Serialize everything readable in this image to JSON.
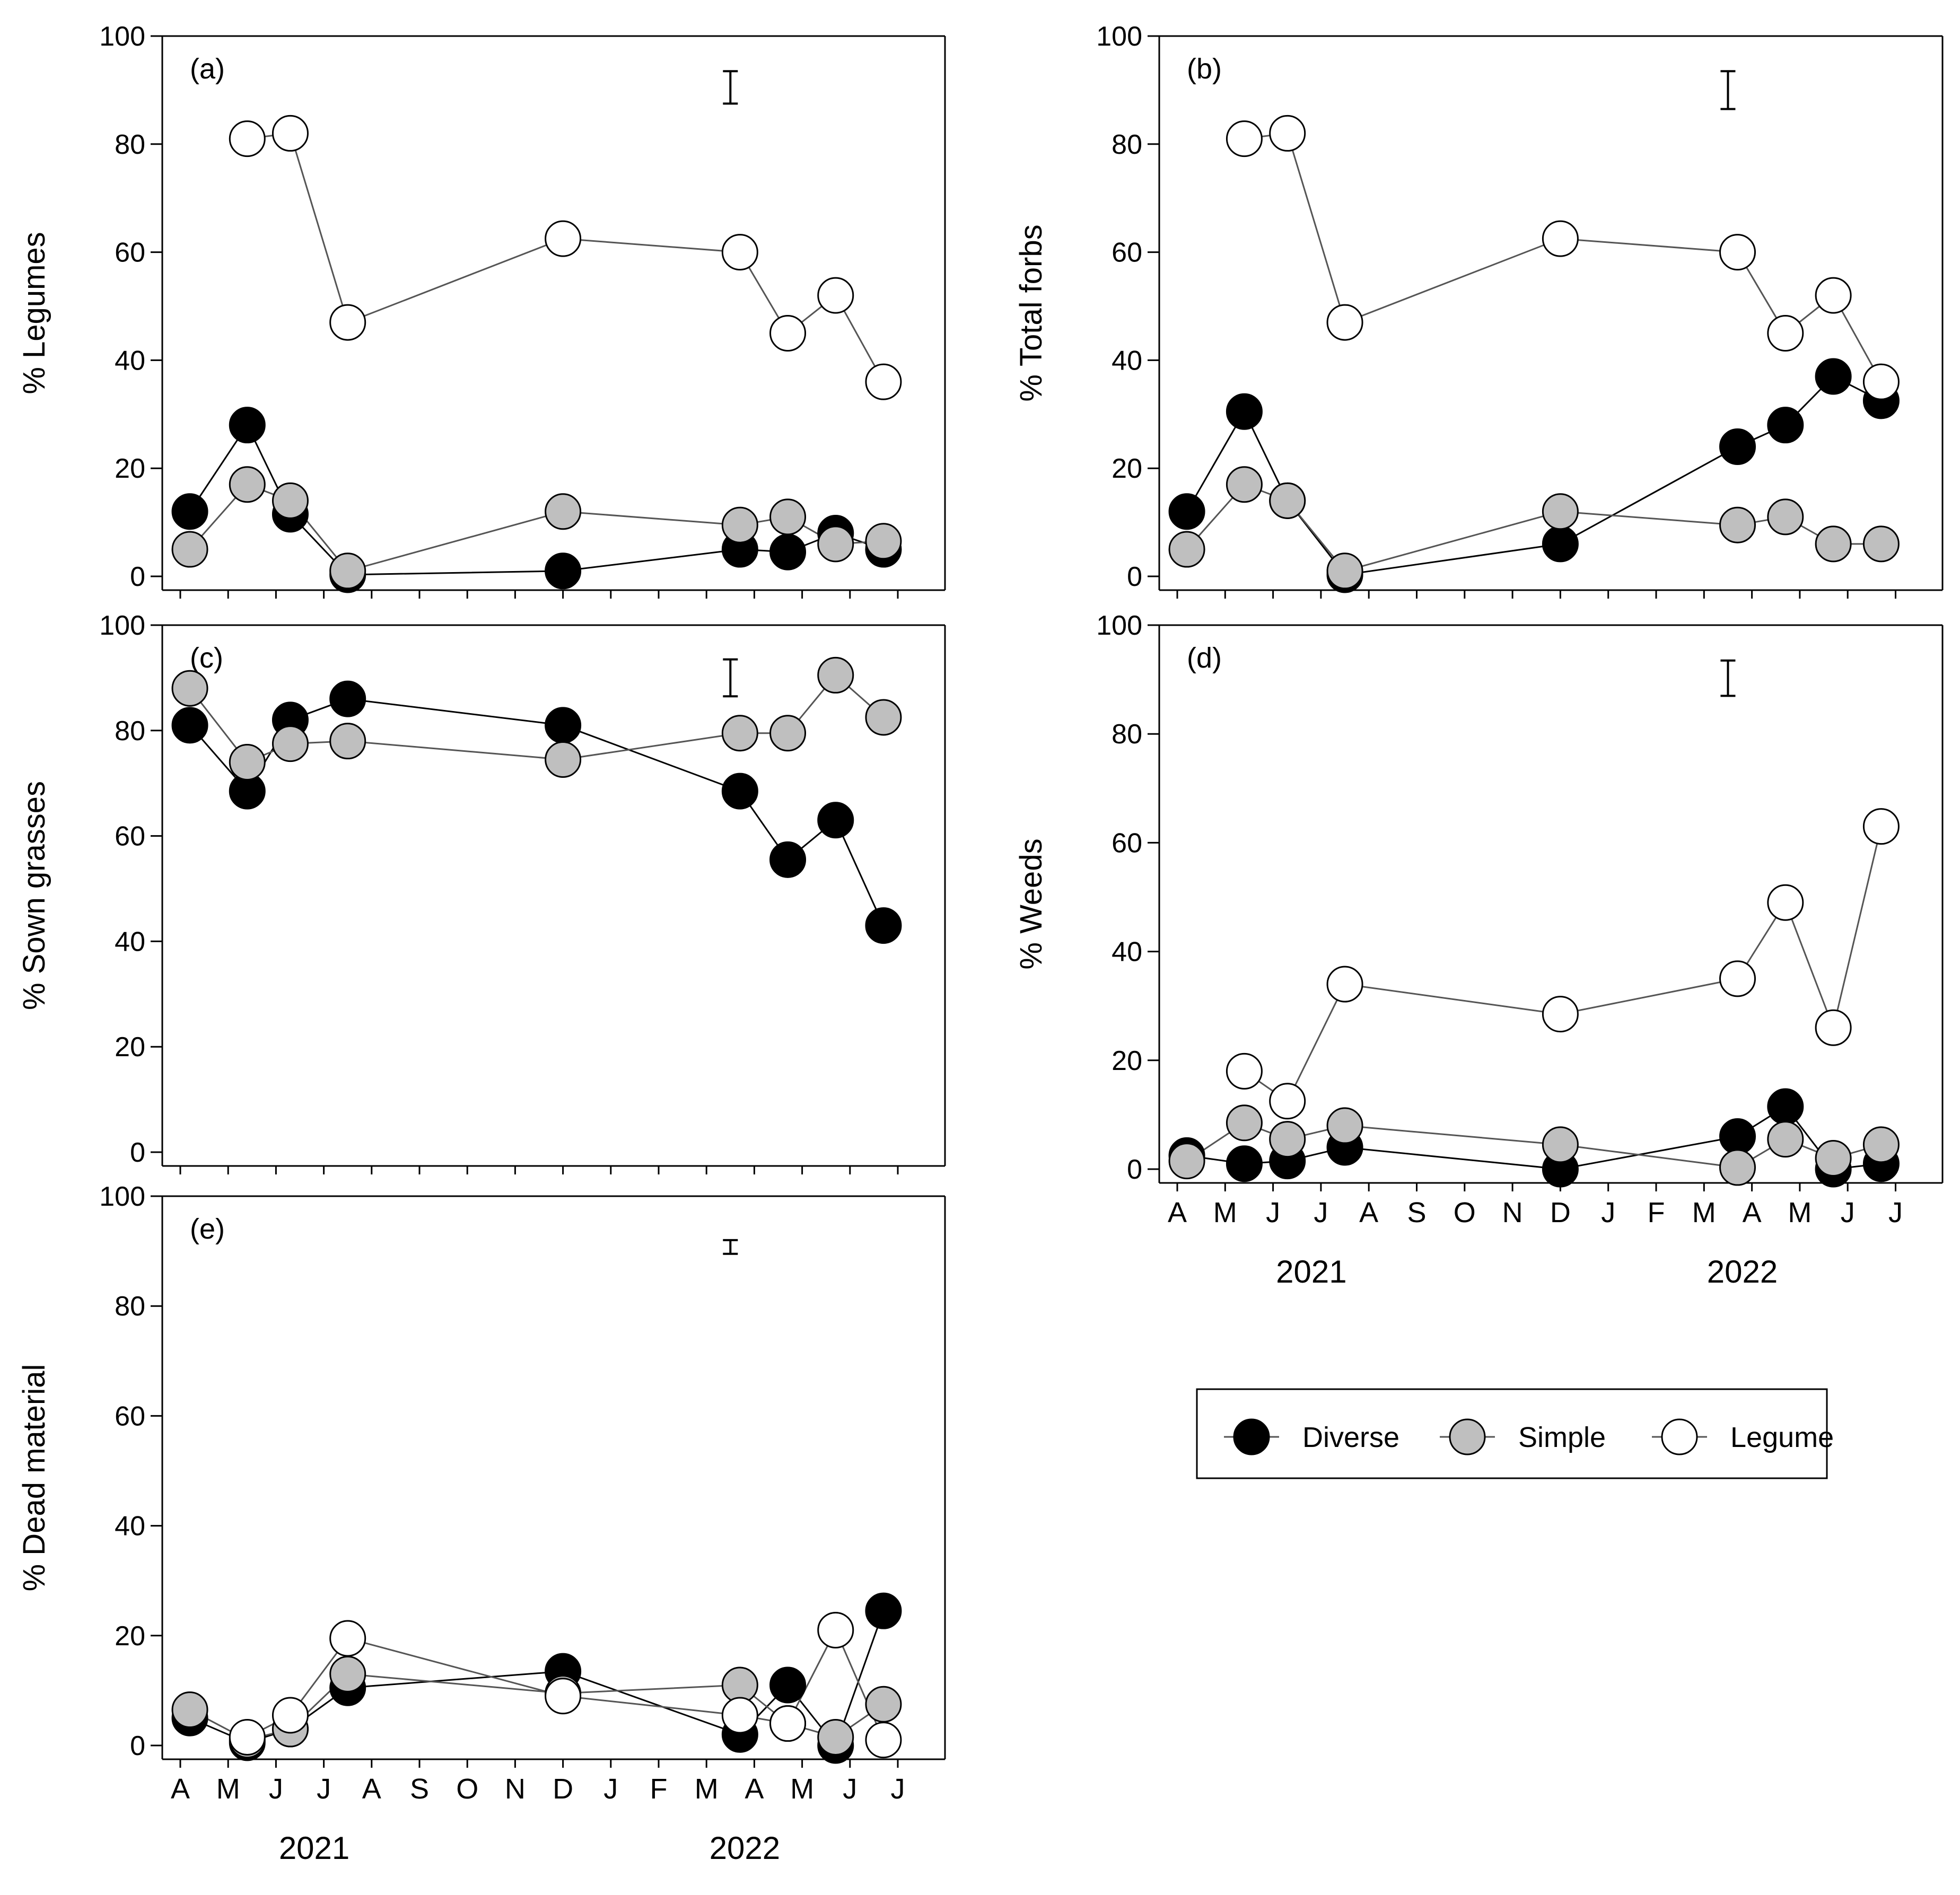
{
  "figure": {
    "months": [
      "A",
      "M",
      "J",
      "J",
      "A",
      "S",
      "O",
      "N",
      "D",
      "J",
      "F",
      "M",
      "A",
      "M",
      "J",
      "J"
    ],
    "years": [
      "2021",
      "2022"
    ],
    "legend": [
      {
        "name": "Diverse",
        "color": "#000000"
      },
      {
        "name": "Simple",
        "color": "#bfbfbf"
      },
      {
        "name": "Legume",
        "color": "#ffffff"
      }
    ]
  },
  "chart_data": [
    {
      "type": "scatter",
      "panel": "(a)",
      "ylabel": "% Legumes",
      "ylim": [
        0,
        100
      ],
      "yticks": [
        0,
        20,
        40,
        60,
        80,
        100
      ],
      "x_unit": "months since 1 April 2021",
      "error_bar": {
        "x": 11.5,
        "low": 87.5,
        "high": 93.5
      },
      "series": [
        {
          "name": "Diverse",
          "x": [
            0.2,
            1.4,
            2.3,
            3.5,
            8.0,
            11.7,
            12.7,
            13.7,
            14.7
          ],
          "y": [
            12,
            28,
            11.5,
            0.3,
            1,
            5,
            4.5,
            8,
            5
          ]
        },
        {
          "name": "Simple",
          "x": [
            0.2,
            1.4,
            2.3,
            3.5,
            8.0,
            11.7,
            12.7,
            13.7,
            14.7
          ],
          "y": [
            5,
            17,
            14,
            1,
            12,
            9.5,
            11,
            6,
            6.5
          ]
        },
        {
          "name": "Legume",
          "x": [
            1.4,
            2.3,
            3.5,
            8.0,
            11.7,
            12.7,
            13.7,
            14.7
          ],
          "y": [
            81,
            82,
            47,
            62.5,
            60,
            45,
            52,
            36
          ]
        }
      ]
    },
    {
      "type": "scatter",
      "panel": "(b)",
      "ylabel": "% Total forbs",
      "ylim": [
        0,
        100
      ],
      "yticks": [
        0,
        20,
        40,
        60,
        80,
        100
      ],
      "x_unit": "months since 1 April 2021",
      "error_bar": {
        "x": 11.5,
        "low": 86.5,
        "high": 93.5
      },
      "series": [
        {
          "name": "Diverse",
          "x": [
            0.2,
            1.4,
            2.3,
            3.5,
            8.0,
            11.7,
            12.7,
            13.7,
            14.7
          ],
          "y": [
            12,
            30.5,
            14,
            0.3,
            6,
            24,
            28,
            37,
            32.5
          ]
        },
        {
          "name": "Simple",
          "x": [
            0.2,
            1.4,
            2.3,
            3.5,
            8.0,
            11.7,
            12.7,
            13.7,
            14.7
          ],
          "y": [
            5,
            17,
            14,
            1,
            12,
            9.5,
            11,
            6,
            6
          ]
        },
        {
          "name": "Legume",
          "x": [
            1.4,
            2.3,
            3.5,
            8.0,
            11.7,
            12.7,
            13.7,
            14.7
          ],
          "y": [
            81,
            82,
            47,
            62.5,
            60,
            45,
            52,
            36
          ]
        }
      ]
    },
    {
      "type": "scatter",
      "panel": "(c)",
      "ylabel": "% Sown grasses",
      "ylim": [
        0,
        100
      ],
      "yticks": [
        0,
        20,
        40,
        60,
        80,
        100
      ],
      "x_unit": "months since 1 April 2021",
      "error_bar": {
        "x": 11.5,
        "low": 86.5,
        "high": 93.5
      },
      "series": [
        {
          "name": "Diverse",
          "x": [
            0.2,
            1.4,
            2.3,
            3.5,
            8.0,
            11.7,
            12.7,
            13.7,
            14.7
          ],
          "y": [
            81,
            68.5,
            82,
            86,
            81,
            68.5,
            55.5,
            63,
            43
          ]
        },
        {
          "name": "Simple",
          "x": [
            0.2,
            1.4,
            2.3,
            3.5,
            8.0,
            11.7,
            12.7,
            13.7,
            14.7
          ],
          "y": [
            88,
            74,
            77.5,
            78,
            74.5,
            79.5,
            79.5,
            90.5,
            82.5
          ]
        }
      ]
    },
    {
      "type": "scatter",
      "panel": "(d)",
      "ylabel": "% Weeds",
      "ylim": [
        0,
        100
      ],
      "yticks": [
        0,
        20,
        40,
        60,
        80,
        100
      ],
      "x_unit": "months since 1 April 2021",
      "error_bar": {
        "x": 11.5,
        "low": 87,
        "high": 93.5
      },
      "series": [
        {
          "name": "Diverse",
          "x": [
            0.2,
            1.4,
            2.3,
            3.5,
            8.0,
            11.7,
            12.7,
            13.7,
            14.7
          ],
          "y": [
            2.5,
            1,
            1.5,
            4,
            0,
            6,
            11.5,
            0,
            1
          ]
        },
        {
          "name": "Simple",
          "x": [
            0.2,
            1.4,
            2.3,
            3.5,
            8.0,
            11.7,
            12.7,
            13.7,
            14.7
          ],
          "y": [
            1.5,
            8.5,
            5.5,
            8,
            4.5,
            0.3,
            5.5,
            2,
            4.5
          ]
        },
        {
          "name": "Legume",
          "x": [
            1.4,
            2.3,
            3.5,
            8.0,
            11.7,
            12.7,
            13.7,
            14.7
          ],
          "y": [
            18,
            12.5,
            34,
            28.5,
            35,
            49,
            26,
            63
          ]
        }
      ]
    },
    {
      "type": "scatter",
      "panel": "(e)",
      "ylabel": "% Dead material",
      "ylim": [
        0,
        100
      ],
      "yticks": [
        0,
        20,
        40,
        60,
        80,
        100
      ],
      "x_unit": "months since 1 April 2021",
      "error_bar": {
        "x": 11.5,
        "low": 89.5,
        "high": 92
      },
      "series": [
        {
          "name": "Diverse",
          "x": [
            0.2,
            1.4,
            2.3,
            3.5,
            8.0,
            11.7,
            12.7,
            13.7,
            14.7
          ],
          "y": [
            5,
            0.5,
            3,
            10.5,
            13.5,
            2,
            11,
            0,
            24.5
          ]
        },
        {
          "name": "Simple",
          "x": [
            0.2,
            1.4,
            2.3,
            3.5,
            8.0,
            11.7,
            12.7,
            13.7,
            14.7
          ],
          "y": [
            6.5,
            1,
            3,
            13,
            9.5,
            11,
            4,
            1.5,
            7.5
          ]
        },
        {
          "name": "Legume",
          "x": [
            1.4,
            2.3,
            3.5,
            8.0,
            11.7,
            12.7,
            13.7,
            14.7
          ],
          "y": [
            1.5,
            5.5,
            19.5,
            9,
            5.5,
            4,
            21,
            1
          ]
        }
      ]
    }
  ]
}
